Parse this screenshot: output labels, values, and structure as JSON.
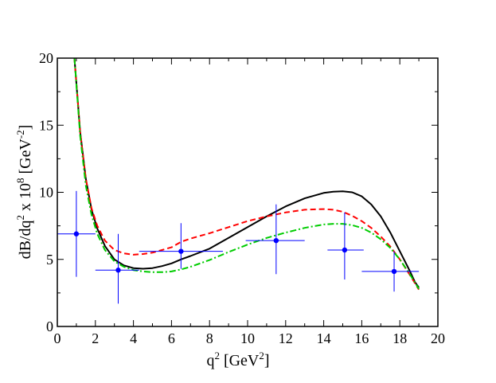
{
  "chart_data": {
    "type": "line",
    "xlim": [
      0,
      20
    ],
    "ylim": [
      0,
      20
    ],
    "x_ticks": [
      "0",
      "2",
      "4",
      "6",
      "8",
      "10",
      "12",
      "14",
      "16",
      "18",
      "20"
    ],
    "y_ticks": [
      "0",
      "5",
      "10",
      "15",
      "20"
    ],
    "xlabel": {
      "base": "q",
      "exp": "2",
      "unit_pre": " [GeV",
      "unit_exp": "2",
      "unit_post": "]"
    },
    "ylabel": {
      "p1": "dB/dq",
      "e1": "2",
      "p2": " x 10",
      "e2": "8",
      "p3": " [GeV",
      "e3": "-2",
      "p4": "]"
    },
    "grid": false,
    "series": [
      {
        "style": "solid",
        "color": "#000000",
        "x": [
          0.9,
          1.2,
          1.5,
          1.8,
          2.1,
          2.5,
          3.0,
          3.5,
          4.0,
          4.5,
          5.0,
          5.5,
          6.0,
          6.5,
          7.0,
          8.0,
          9.0,
          10.0,
          11.0,
          12.0,
          13.0,
          14.0,
          14.5,
          15.0,
          15.5,
          16.0,
          16.5,
          17.0,
          17.5,
          18.0,
          18.5,
          18.8,
          19.0
        ],
        "y": [
          20.0,
          14.5,
          11.0,
          8.7,
          7.3,
          6.0,
          5.0,
          4.55,
          4.35,
          4.3,
          4.35,
          4.5,
          4.7,
          5.0,
          5.25,
          5.8,
          6.6,
          7.4,
          8.2,
          8.95,
          9.55,
          9.95,
          10.05,
          10.08,
          10.0,
          9.7,
          9.1,
          8.2,
          7.0,
          5.6,
          4.2,
          3.3,
          2.9
        ]
      },
      {
        "style": "dashed",
        "color": "#ff0000",
        "x": [
          0.9,
          1.2,
          1.5,
          1.8,
          2.1,
          2.5,
          3.0,
          3.5,
          4.0,
          4.5,
          5.0,
          5.5,
          6.0,
          6.5,
          7.0,
          8.0,
          9.0,
          10.0,
          11.0,
          12.0,
          13.0,
          14.0,
          14.5,
          15.0,
          15.5,
          16.0,
          16.5,
          17.0,
          17.5,
          18.0,
          18.5,
          19.0
        ],
        "y": [
          20.0,
          14.5,
          11.0,
          8.8,
          7.5,
          6.4,
          5.7,
          5.45,
          5.35,
          5.4,
          5.5,
          5.7,
          5.9,
          6.3,
          6.55,
          6.95,
          7.4,
          7.85,
          8.2,
          8.5,
          8.7,
          8.75,
          8.7,
          8.55,
          8.25,
          7.85,
          7.35,
          6.7,
          5.95,
          5.0,
          3.9,
          2.75
        ]
      },
      {
        "style": "dashdot",
        "color": "#00cc00",
        "x": [
          0.9,
          1.2,
          1.5,
          1.8,
          2.1,
          2.5,
          3.0,
          3.5,
          4.0,
          4.5,
          5.0,
          5.5,
          6.0,
          6.5,
          7.0,
          8.0,
          9.0,
          10.0,
          11.0,
          12.0,
          13.0,
          14.0,
          14.5,
          15.0,
          15.5,
          16.0,
          16.5,
          17.0,
          17.5,
          18.0,
          18.5,
          19.0
        ],
        "y": [
          20.0,
          14.2,
          10.5,
          8.3,
          6.9,
          5.7,
          4.85,
          4.45,
          4.2,
          4.1,
          4.05,
          4.05,
          4.1,
          4.25,
          4.45,
          4.95,
          5.55,
          6.1,
          6.6,
          7.0,
          7.35,
          7.6,
          7.65,
          7.65,
          7.55,
          7.35,
          7.0,
          6.5,
          5.85,
          5.0,
          3.95,
          2.8
        ]
      }
    ],
    "data_points": {
      "color": "#0000ff",
      "x": [
        1.0,
        3.2,
        6.5,
        11.5,
        15.1,
        17.7
      ],
      "y": [
        6.9,
        4.2,
        5.6,
        6.4,
        5.7,
        4.1
      ],
      "xlo": [
        0.0,
        2.0,
        4.3,
        9.9,
        14.2,
        16.0
      ],
      "xhi": [
        2.0,
        4.3,
        8.7,
        13.0,
        16.1,
        19.0
      ],
      "ylo": [
        3.7,
        1.7,
        4.3,
        3.9,
        3.5,
        2.6
      ],
      "yhi": [
        10.1,
        6.9,
        7.7,
        9.1,
        8.5,
        5.6
      ]
    }
  }
}
